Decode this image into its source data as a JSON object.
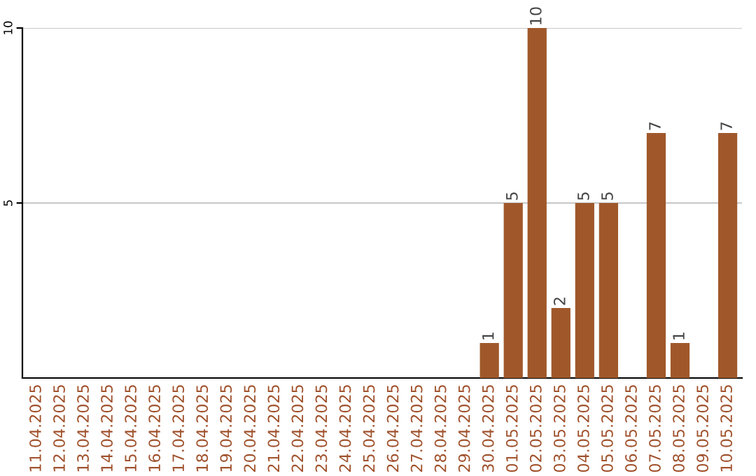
{
  "chart_data": {
    "type": "bar",
    "categories": [
      "11.04.2025",
      "12.04.2025",
      "13.04.2025",
      "14.04.2025",
      "15.04.2025",
      "16.04.2025",
      "17.04.2025",
      "18.04.2025",
      "19.04.2025",
      "20.04.2025",
      "21.04.2025",
      "22.04.2025",
      "23.04.2025",
      "24.04.2025",
      "25.04.2025",
      "26.04.2025",
      "27.04.2025",
      "28.04.2025",
      "29.04.2025",
      "30.04.2025",
      "01.05.2025",
      "02.05.2025",
      "03.05.2025",
      "04.05.2025",
      "05.05.2025",
      "06.05.2025",
      "07.05.2025",
      "08.05.2025",
      "09.05.2025",
      "10.05.2025"
    ],
    "values": [
      0,
      0,
      0,
      0,
      0,
      0,
      0,
      0,
      0,
      0,
      0,
      0,
      0,
      0,
      0,
      0,
      0,
      0,
      0,
      1,
      5,
      10,
      2,
      5,
      5,
      0,
      7,
      1,
      0,
      7
    ],
    "value_labels": [
      null,
      null,
      null,
      null,
      null,
      null,
      null,
      null,
      null,
      null,
      null,
      null,
      null,
      null,
      null,
      null,
      null,
      null,
      null,
      "1",
      "5",
      "10",
      "2",
      "5",
      "5",
      null,
      "7",
      "1",
      null,
      "7"
    ],
    "color": "#a0582a",
    "ylim": [
      0,
      10
    ],
    "yticks": [
      5,
      10
    ],
    "grid": "y"
  }
}
